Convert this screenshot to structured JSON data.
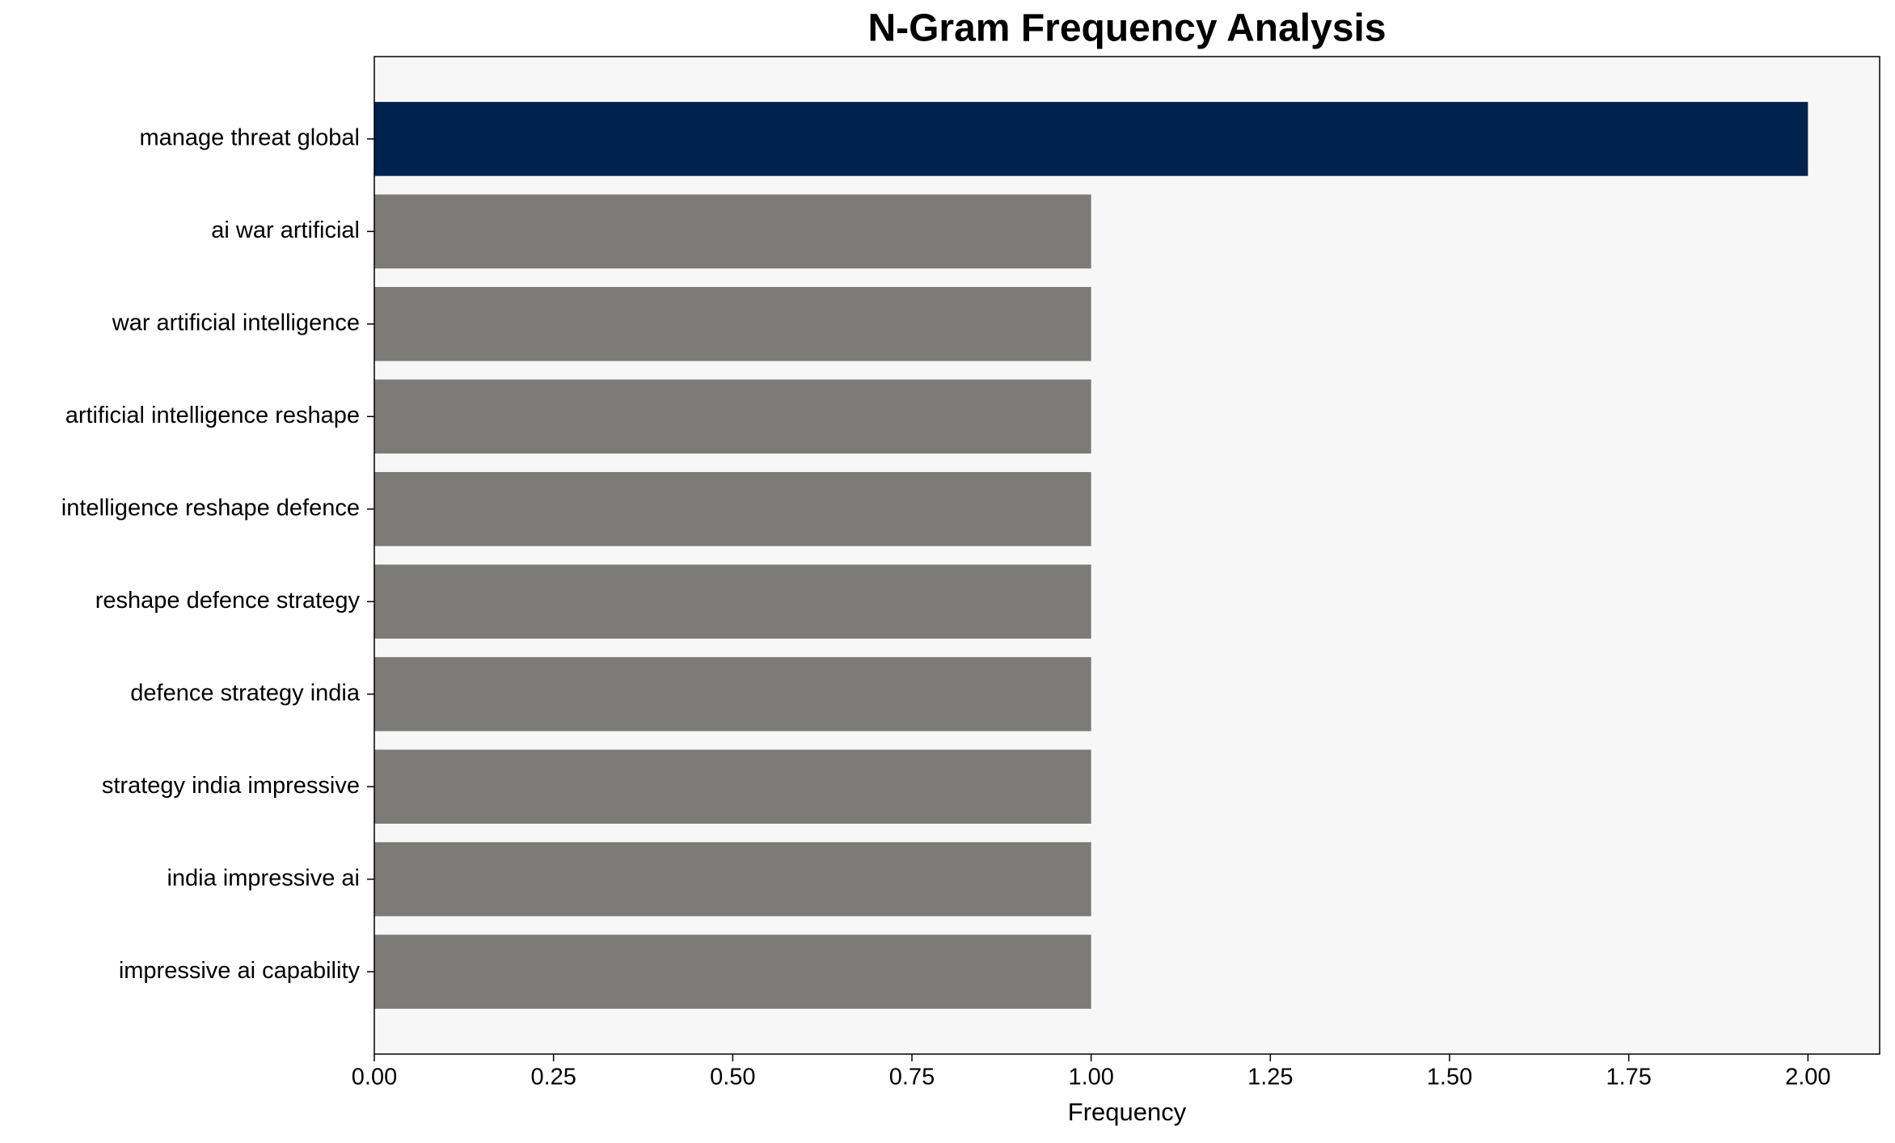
{
  "chart_data": {
    "type": "barh",
    "title": "N-Gram Frequency Analysis",
    "xlabel": "Frequency",
    "categories": [
      "manage threat global",
      "ai war artificial",
      "war artificial intelligence",
      "artificial intelligence reshape",
      "intelligence reshape defence",
      "reshape defence strategy",
      "defence strategy india",
      "strategy india impressive",
      "india impressive ai",
      "impressive ai capability"
    ],
    "values": [
      2,
      1,
      1,
      1,
      1,
      1,
      1,
      1,
      1,
      1
    ],
    "colors": [
      "#00224e",
      "#7c7b78",
      "#7c7b78",
      "#7c7b78",
      "#7c7b78",
      "#7c7b78",
      "#7c7b78",
      "#7c7b78",
      "#7c7b78",
      "#7c7b78"
    ],
    "xlim": [
      0,
      2.1
    ],
    "xticks": [
      {
        "value": 0,
        "label": "0.00"
      },
      {
        "value": 0.25,
        "label": "0.25"
      },
      {
        "value": 0.5,
        "label": "0.50"
      },
      {
        "value": 0.75,
        "label": "0.75"
      },
      {
        "value": 1,
        "label": "1.00"
      },
      {
        "value": 1.25,
        "label": "1.25"
      },
      {
        "value": 1.5,
        "label": "1.50"
      },
      {
        "value": 1.75,
        "label": "1.75"
      },
      {
        "value": 2,
        "label": "2.00"
      }
    ],
    "plot_background": "#f7f7f7"
  }
}
